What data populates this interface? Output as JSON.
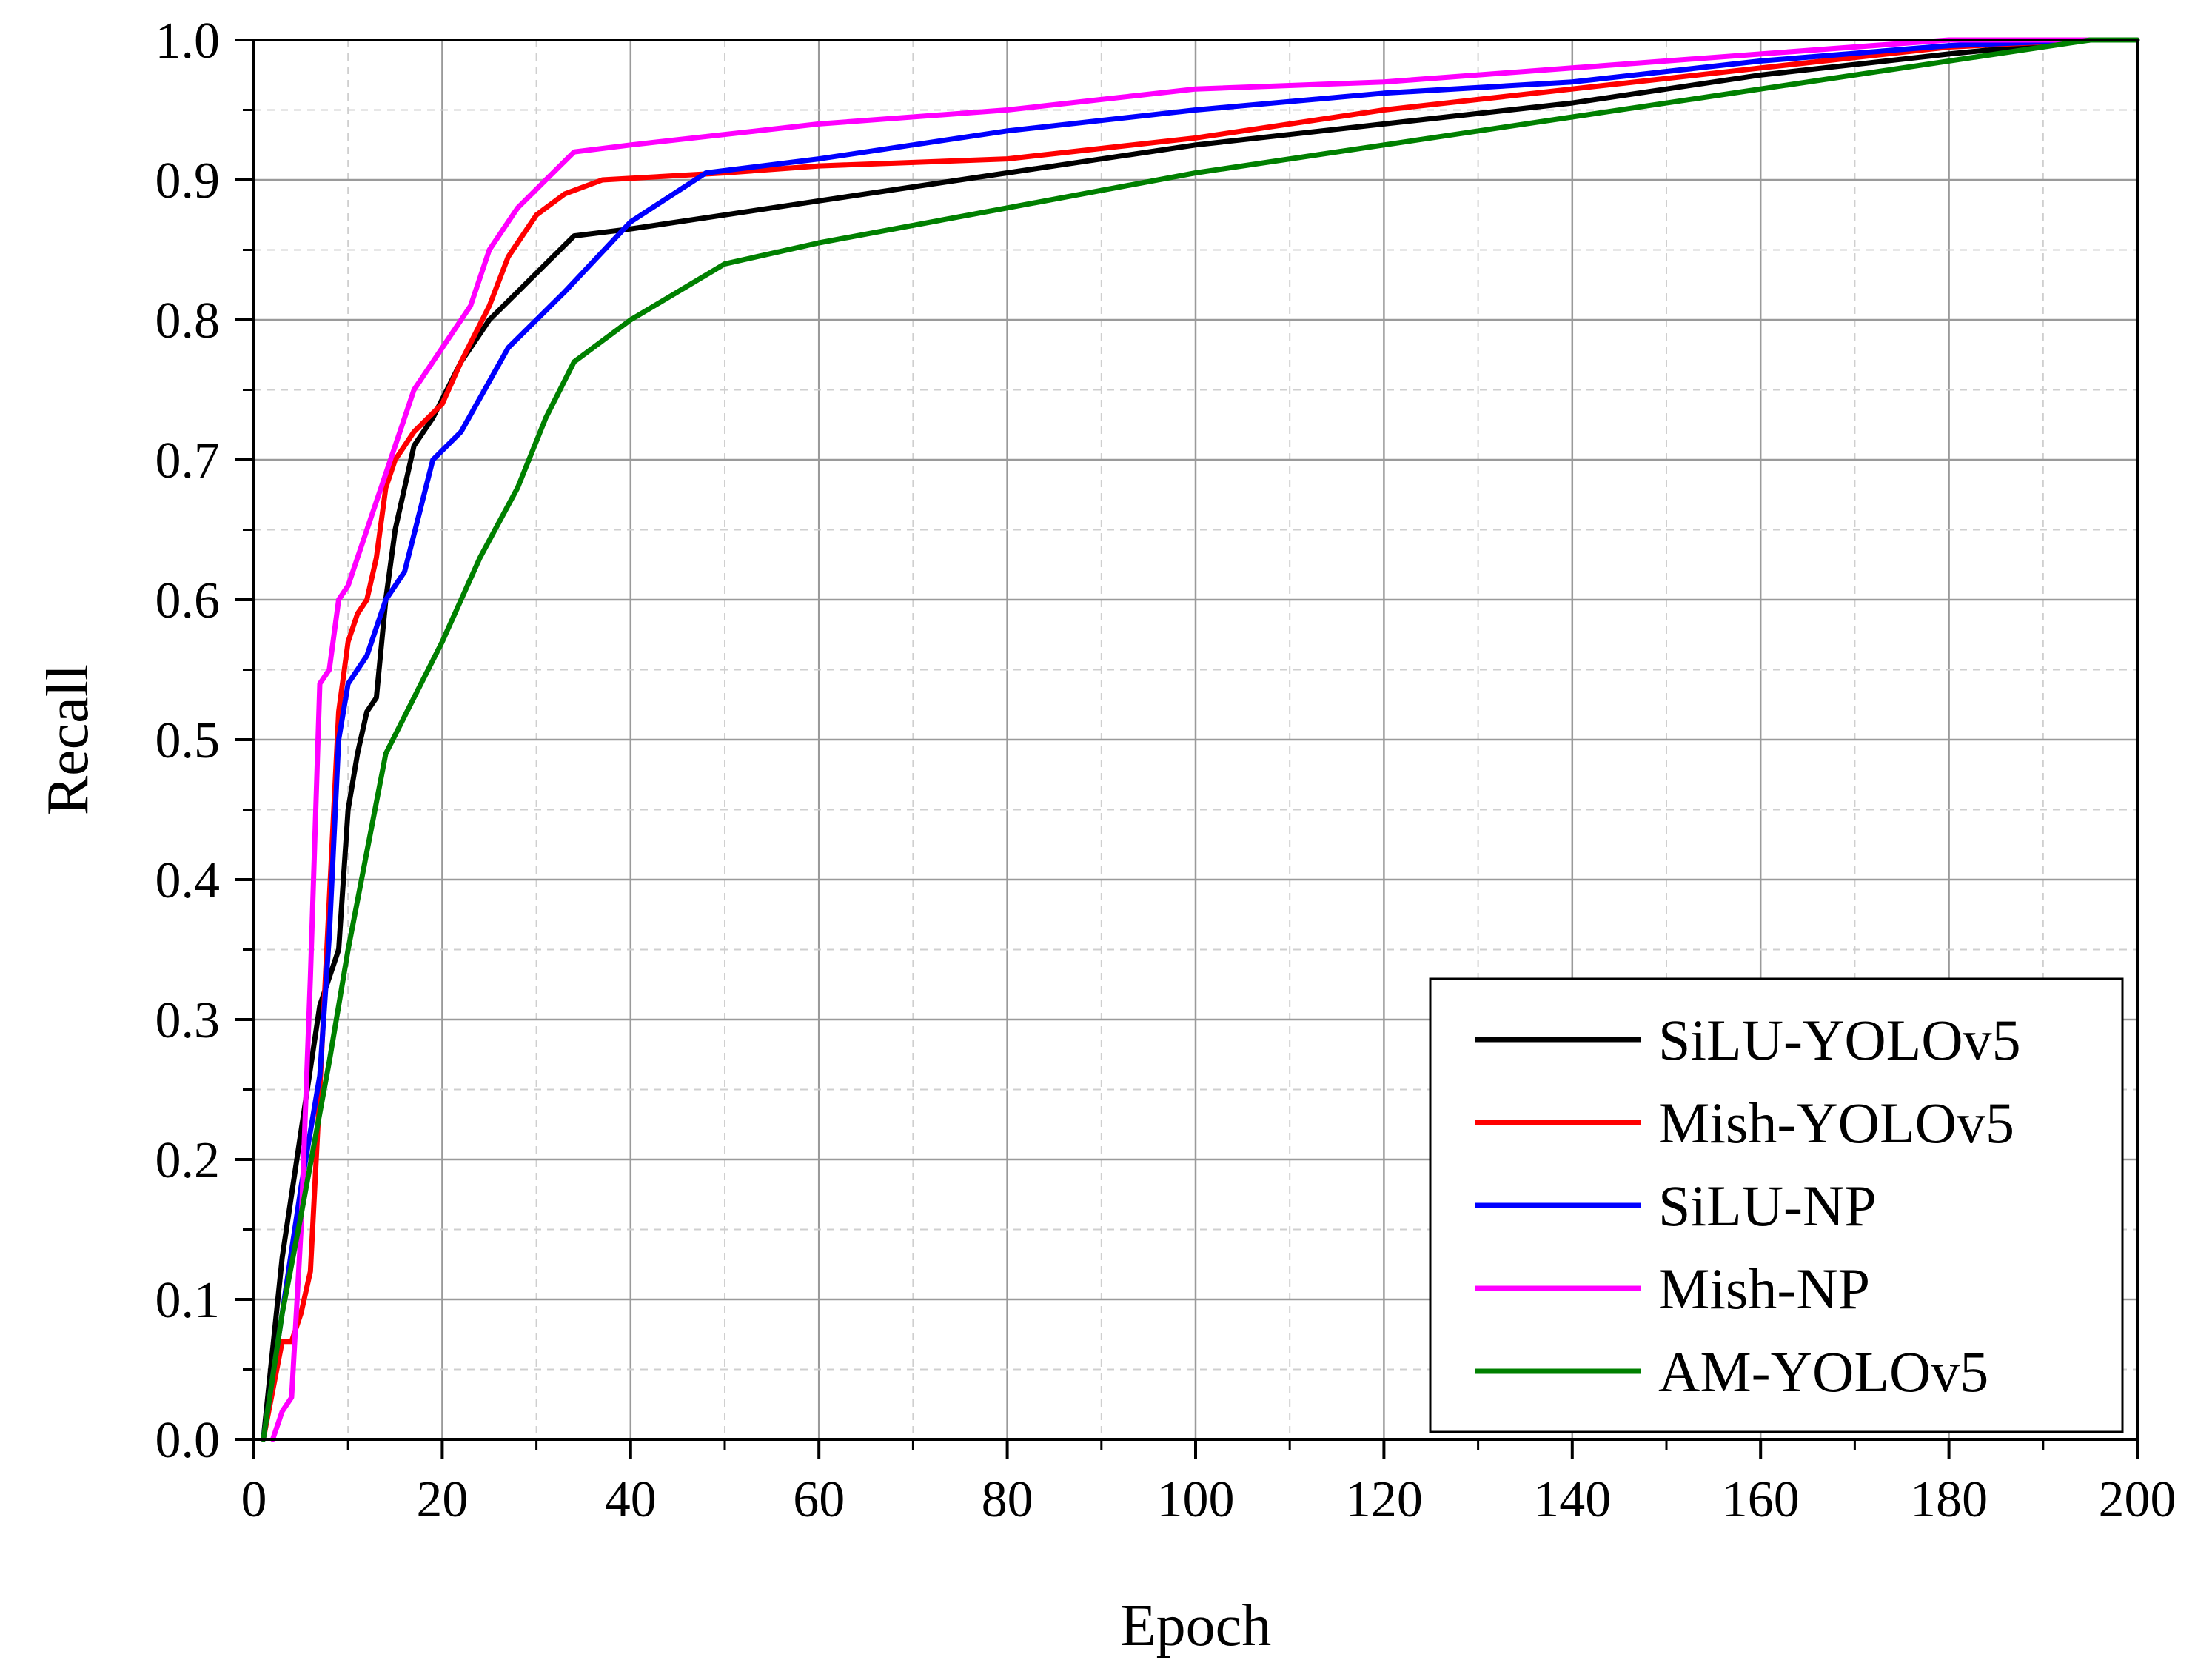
{
  "chart_data": {
    "type": "line",
    "title": "",
    "xlabel": "Epoch",
    "ylabel": "Recall",
    "xlim": [
      0,
      200
    ],
    "ylim": [
      0.0,
      1.0
    ],
    "xticks": [
      0,
      20,
      40,
      60,
      80,
      100,
      120,
      140,
      160,
      180,
      200
    ],
    "xtick_labels": [
      "0",
      "20",
      "40",
      "60",
      "80",
      "100",
      "120",
      "140",
      "160",
      "180",
      "200"
    ],
    "yticks": [
      0.0,
      0.1,
      0.2,
      0.3,
      0.4,
      0.5,
      0.6,
      0.7,
      0.8,
      0.9,
      1.0
    ],
    "ytick_labels": [
      "0.0",
      "0.1",
      "0.2",
      "0.3",
      "0.4",
      "0.5",
      "0.6",
      "0.7",
      "0.8",
      "0.9",
      "1.0"
    ],
    "grid": true,
    "legend_position": "bottom-right",
    "series": [
      {
        "name": "SiLU-YOLOv5",
        "color": "#000000",
        "x": [
          1,
          3,
          5,
          7,
          9,
          10,
          11,
          12,
          13,
          14,
          15,
          17,
          19,
          22,
          25,
          28,
          31,
          34,
          40,
          50,
          60,
          80,
          100,
          120,
          140,
          160,
          180,
          195,
          200
        ],
        "y": [
          0.0,
          0.13,
          0.22,
          0.31,
          0.35,
          0.45,
          0.49,
          0.52,
          0.53,
          0.6,
          0.65,
          0.71,
          0.73,
          0.77,
          0.8,
          0.82,
          0.84,
          0.86,
          0.865,
          0.875,
          0.885,
          0.905,
          0.925,
          0.94,
          0.955,
          0.975,
          0.99,
          1.0,
          1.0
        ]
      },
      {
        "name": "Mish-YOLOv5",
        "color": "#ff0000",
        "x": [
          1,
          3,
          4,
          5,
          6,
          7,
          9,
          10,
          11,
          12,
          13,
          14,
          15,
          17,
          20,
          22,
          25,
          27,
          30,
          33,
          37,
          50,
          60,
          80,
          100,
          120,
          140,
          160,
          180,
          195,
          200
        ],
        "y": [
          0.0,
          0.07,
          0.07,
          0.09,
          0.12,
          0.25,
          0.52,
          0.57,
          0.59,
          0.6,
          0.63,
          0.68,
          0.7,
          0.72,
          0.74,
          0.77,
          0.81,
          0.845,
          0.875,
          0.89,
          0.9,
          0.905,
          0.91,
          0.915,
          0.93,
          0.95,
          0.965,
          0.98,
          0.995,
          1.0,
          1.0
        ]
      },
      {
        "name": "SiLU-NP",
        "color": "#0000ff",
        "x": [
          1,
          3,
          5,
          7,
          8,
          9,
          10,
          12,
          14,
          16,
          19,
          22,
          27,
          33,
          40,
          48,
          60,
          80,
          100,
          120,
          140,
          160,
          180,
          195,
          200
        ],
        "y": [
          0.0,
          0.09,
          0.18,
          0.26,
          0.36,
          0.5,
          0.54,
          0.56,
          0.6,
          0.62,
          0.7,
          0.72,
          0.78,
          0.82,
          0.87,
          0.905,
          0.915,
          0.935,
          0.95,
          0.962,
          0.97,
          0.985,
          0.996,
          1.0,
          1.0
        ]
      },
      {
        "name": "Mish-NP",
        "color": "#ff00ff",
        "x": [
          2,
          3,
          4,
          5,
          6,
          7,
          8,
          9,
          10,
          12,
          15,
          17,
          20,
          23,
          25,
          28,
          31,
          34,
          40,
          60,
          80,
          100,
          120,
          140,
          160,
          180,
          195,
          200
        ],
        "y": [
          0.0,
          0.02,
          0.03,
          0.15,
          0.33,
          0.54,
          0.55,
          0.6,
          0.61,
          0.65,
          0.71,
          0.75,
          0.78,
          0.81,
          0.85,
          0.88,
          0.9,
          0.92,
          0.925,
          0.94,
          0.95,
          0.965,
          0.97,
          0.98,
          0.99,
          1.0,
          1.0,
          1.0
        ]
      },
      {
        "name": "AM-YOLOv5",
        "color": "#008000",
        "x": [
          1,
          3,
          5,
          8,
          10,
          12,
          14,
          17,
          20,
          24,
          28,
          31,
          34,
          40,
          50,
          60,
          80,
          100,
          120,
          140,
          160,
          180,
          195,
          200
        ],
        "y": [
          0.0,
          0.09,
          0.16,
          0.27,
          0.35,
          0.42,
          0.49,
          0.53,
          0.57,
          0.63,
          0.68,
          0.73,
          0.77,
          0.8,
          0.84,
          0.855,
          0.88,
          0.905,
          0.925,
          0.945,
          0.965,
          0.985,
          1.0,
          1.0
        ]
      }
    ]
  }
}
